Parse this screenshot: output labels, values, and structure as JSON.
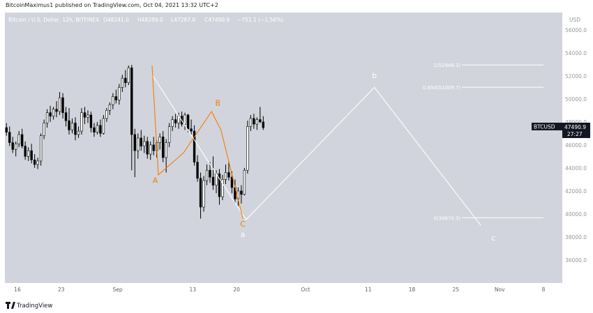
{
  "header": {
    "text": "BitcoinMaximus1 published on TradingView.com, Oct 04, 2021 13:32 UTC+2"
  },
  "legend": {
    "symbol": "Bitcoin / U.S. Dollar, 12h, BITFINEX",
    "open": "O48241.0",
    "high": "H48289.0",
    "low": "L47287.0",
    "close": "C47490.9",
    "change": "−751.1 (−1.56%)"
  },
  "price_label": {
    "symbol": "BTCUSD",
    "price": "47490.9",
    "countdown": "27:27"
  },
  "footer": {
    "brand": "TradingView"
  },
  "chart_data": {
    "type": "candlestick",
    "y_axis": {
      "unit": "USD",
      "ticks": [
        36000,
        38000,
        40000,
        42000,
        44000,
        46000,
        48000,
        50000,
        52000,
        54000,
        56000
      ],
      "tick_labels": [
        "36000.0",
        "38000.0",
        "40000.0",
        "42000.0",
        "44000.0",
        "46000.0",
        "48000.0",
        "50000.0",
        "52000.0",
        "54000.0",
        "56000.0"
      ],
      "ylim": [
        34000,
        57500
      ]
    },
    "x_axis": {
      "tick_labels": [
        "16",
        "23",
        "Sep",
        "13",
        "20",
        "Oct",
        "11",
        "18",
        "25",
        "Nov",
        "8"
      ],
      "tick_dates": [
        "2021-08-16",
        "2021-08-23",
        "2021-09-01",
        "2021-09-13",
        "2021-09-20",
        "2021-10-01",
        "2021-10-11",
        "2021-10-18",
        "2021-10-25",
        "2021-11-01",
        "2021-11-08"
      ],
      "xlim": [
        "2021-08-14",
        "2021-11-11"
      ]
    },
    "candles": {
      "interval": "12h",
      "start": "2021-08-14T00:00",
      "ohlc": [
        [
          47500,
          47900,
          46800,
          47100
        ],
        [
          47100,
          47600,
          45900,
          46200
        ],
        [
          46200,
          46700,
          45300,
          45600
        ],
        [
          45600,
          46300,
          45000,
          46100
        ],
        [
          46100,
          47200,
          45800,
          46900
        ],
        [
          46900,
          47400,
          45700,
          45900
        ],
        [
          45900,
          46300,
          44700,
          45000
        ],
        [
          45000,
          45800,
          44600,
          45500
        ],
        [
          45500,
          46100,
          44400,
          44700
        ],
        [
          44700,
          45200,
          44000,
          44300
        ],
        [
          44300,
          44900,
          43900,
          44600
        ],
        [
          44600,
          47000,
          44200,
          46800
        ],
        [
          46800,
          48200,
          46500,
          47900
        ],
        [
          47900,
          49100,
          47500,
          48800
        ],
        [
          48800,
          49400,
          48000,
          48500
        ],
        [
          48500,
          49300,
          48200,
          49100
        ],
        [
          49100,
          49800,
          48400,
          48900
        ],
        [
          48900,
          50600,
          48600,
          50100
        ],
        [
          50100,
          50500,
          48300,
          48800
        ],
        [
          48800,
          49300,
          47600,
          48100
        ],
        [
          48100,
          49200,
          46900,
          47300
        ],
        [
          47300,
          48300,
          47000,
          47900
        ],
        [
          47900,
          48400,
          46400,
          46900
        ],
        [
          46900,
          47600,
          46600,
          47200
        ],
        [
          47200,
          49200,
          46900,
          48800
        ],
        [
          48800,
          49300,
          47800,
          48400
        ],
        [
          48400,
          49000,
          47900,
          48600
        ],
        [
          48600,
          48900,
          47100,
          47500
        ],
        [
          47500,
          47900,
          46700,
          47100
        ],
        [
          47100,
          48000,
          46900,
          47700
        ],
        [
          47700,
          48200,
          46700,
          47000
        ],
        [
          47000,
          48600,
          46900,
          48300
        ],
        [
          48300,
          49200,
          48000,
          49000
        ],
        [
          49000,
          49700,
          48600,
          49500
        ],
        [
          49500,
          50500,
          49100,
          50200
        ],
        [
          50200,
          50800,
          49600,
          49900
        ],
        [
          49900,
          51300,
          49500,
          51000
        ],
        [
          51000,
          52100,
          50600,
          51800
        ],
        [
          51800,
          52500,
          51000,
          51400
        ],
        [
          51400,
          52900,
          51200,
          52700
        ],
        [
          52700,
          52950,
          43800,
          46900
        ],
        [
          46900,
          47400,
          43200,
          45500
        ],
        [
          45500,
          47000,
          44800,
          46600
        ],
        [
          46600,
          47300,
          45500,
          45900
        ],
        [
          45900,
          46800,
          45300,
          46300
        ],
        [
          46300,
          46700,
          44800,
          45200
        ],
        [
          45200,
          46300,
          44700,
          46000
        ],
        [
          46000,
          46700,
          45100,
          45500
        ],
        [
          45500,
          46400,
          44900,
          46200
        ],
        [
          46200,
          47000,
          45600,
          46700
        ],
        [
          46700,
          47200,
          44500,
          44900
        ],
        [
          44900,
          46500,
          43600,
          46200
        ],
        [
          46200,
          47900,
          45800,
          47600
        ],
        [
          47600,
          48500,
          47200,
          48200
        ],
        [
          48200,
          48700,
          47500,
          47900
        ],
        [
          47900,
          48800,
          47400,
          48500
        ],
        [
          48500,
          48900,
          47600,
          47800
        ],
        [
          47800,
          48800,
          47300,
          48600
        ],
        [
          48600,
          48700,
          47100,
          47400
        ],
        [
          47400,
          48200,
          46900,
          47200
        ],
        [
          47200,
          47700,
          44200,
          44500
        ],
        [
          44500,
          45100,
          42800,
          43100
        ],
        [
          43100,
          43600,
          39600,
          40600
        ],
        [
          40600,
          43300,
          40200,
          42900
        ],
        [
          42900,
          44300,
          42500,
          43800
        ],
        [
          43800,
          44500,
          42700,
          43200
        ],
        [
          43200,
          45000,
          42100,
          42500
        ],
        [
          42500,
          43800,
          41800,
          43500
        ],
        [
          43500,
          43900,
          40800,
          41500
        ],
        [
          41500,
          43400,
          41200,
          43000
        ],
        [
          43000,
          44300,
          42600,
          43600
        ],
        [
          43600,
          44600,
          42900,
          43200
        ],
        [
          43200,
          43700,
          41800,
          42300
        ],
        [
          42300,
          43000,
          40900,
          41300
        ],
        [
          41300,
          42300,
          40700,
          42000
        ],
        [
          42000,
          42500,
          40900,
          41700
        ],
        [
          41700,
          44000,
          41600,
          43800
        ],
        [
          43800,
          48100,
          43500,
          47600
        ],
        [
          47600,
          48600,
          47200,
          48300
        ],
        [
          48300,
          48700,
          47400,
          47800
        ],
        [
          47800,
          48400,
          47300,
          48200
        ],
        [
          48200,
          49300,
          47900,
          48000
        ],
        [
          48000,
          48500,
          47300,
          47500
        ]
      ]
    },
    "wave_labels": [
      {
        "text": "A",
        "date": "2021-09-07",
        "price": 42700,
        "color": "#f57c00"
      },
      {
        "text": "B",
        "date": "2021-09-17",
        "price": 49400,
        "color": "#f57c00"
      },
      {
        "text": "C",
        "date": "2021-09-21",
        "price": 38900,
        "color": "#f57c00"
      },
      {
        "text": "a",
        "date": "2021-09-21",
        "price": 38000,
        "color": "#ffffff"
      },
      {
        "text": "b",
        "date": "2021-10-12",
        "price": 51800,
        "color": "#ffffff"
      },
      {
        "text": "c",
        "date": "2021-10-31",
        "price": 37700,
        "color": "#ffffff"
      }
    ],
    "orange_path": [
      {
        "date": "2021-09-06T12:00",
        "price": 52900
      },
      {
        "date": "2021-09-07T12:00",
        "price": 43400
      },
      {
        "date": "2021-09-11T12:00",
        "price": 45300
      },
      {
        "date": "2021-09-16T00:00",
        "price": 48900
      },
      {
        "date": "2021-09-17T12:00",
        "price": 47300
      },
      {
        "date": "2021-09-21T00:00",
        "price": 39600
      }
    ],
    "white_path": [
      {
        "date": "2021-09-06T12:00",
        "price": 52100
      },
      {
        "date": "2021-09-21T12:00",
        "price": 39500
      },
      {
        "date": "2021-10-12T00:00",
        "price": 51000
      },
      {
        "date": "2021-10-29T00:00",
        "price": 39000
      }
    ],
    "fib_levels": [
      {
        "label": "1(52948.3)",
        "price": 52948.3
      },
      {
        "label": "0.854(51009.7)",
        "price": 51009.7
      },
      {
        "label": "0(39670.3)",
        "price": 39670.3
      }
    ],
    "fib_start": "2021-10-26",
    "fib_end": "2021-11-08",
    "colors": {
      "up": "#ffffff",
      "down": "#000000",
      "orange": "#f57c00",
      "white_line": "#ffffff",
      "background": "#d1d4dc"
    }
  }
}
